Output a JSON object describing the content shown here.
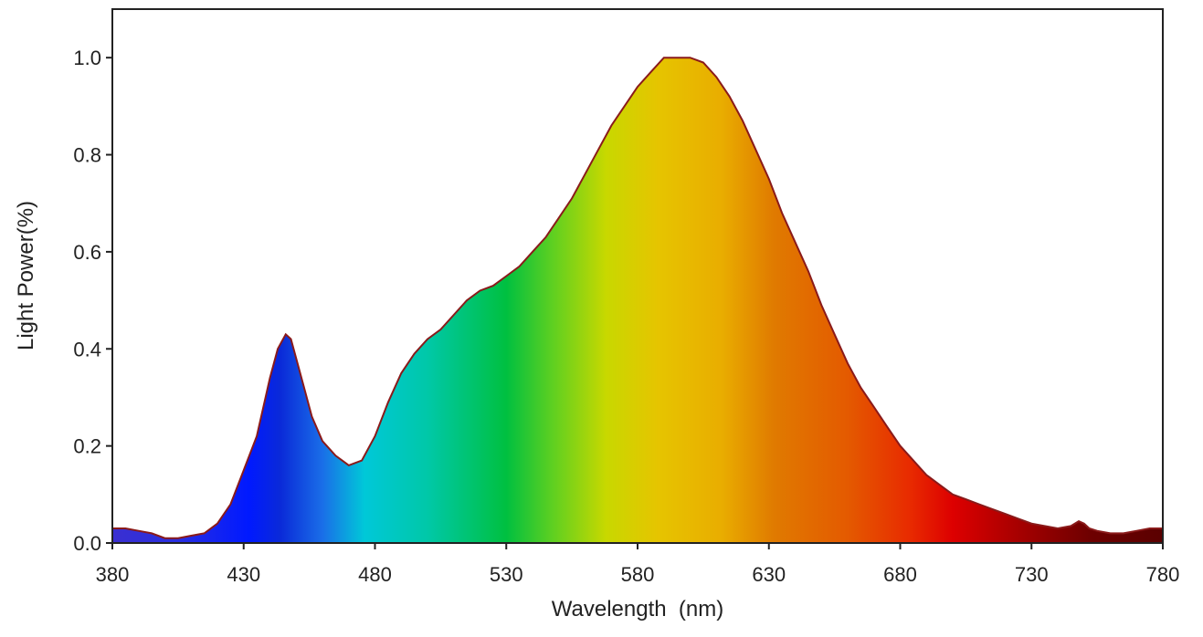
{
  "chart_data": {
    "type": "area",
    "title": "",
    "xlabel": "Wavelength  (nm)",
    "ylabel": "Light Power(%)",
    "xlim": [
      380,
      780
    ],
    "ylim": [
      0,
      1.1
    ],
    "x_ticks": [
      380,
      430,
      480,
      530,
      580,
      630,
      680,
      730,
      780
    ],
    "x_tick_labels": [
      "380",
      "430",
      "480",
      "530",
      "580",
      "630",
      "680",
      "730",
      "780"
    ],
    "y_ticks": [
      0.0,
      0.2,
      0.4,
      0.6,
      0.8,
      1.0
    ],
    "y_tick_labels": [
      "0.0",
      "0.2",
      "0.4",
      "0.6",
      "0.8",
      "1.0"
    ],
    "grid": false,
    "legend": "none",
    "fill": "visible-spectrum-gradient",
    "line_color": "#8a1a1a",
    "series": [
      {
        "x": [
          380,
          385,
          390,
          395,
          400,
          405,
          410,
          415,
          420,
          425,
          430,
          435,
          440,
          443,
          446,
          448,
          450,
          453,
          456,
          460,
          465,
          470,
          475,
          480,
          485,
          490,
          495,
          500,
          505,
          510,
          515,
          520,
          525,
          530,
          535,
          540,
          545,
          550,
          555,
          560,
          565,
          570,
          575,
          580,
          585,
          590,
          595,
          600,
          605,
          610,
          615,
          620,
          625,
          630,
          635,
          640,
          645,
          650,
          655,
          660,
          665,
          670,
          675,
          680,
          685,
          690,
          695,
          700,
          705,
          710,
          715,
          720,
          725,
          730,
          735,
          740,
          745,
          748,
          750,
          752,
          755,
          760,
          765,
          770,
          775,
          780
        ],
        "y": [
          0.03,
          0.03,
          0.025,
          0.02,
          0.01,
          0.01,
          0.015,
          0.02,
          0.04,
          0.08,
          0.15,
          0.22,
          0.34,
          0.4,
          0.43,
          0.42,
          0.38,
          0.32,
          0.26,
          0.21,
          0.18,
          0.16,
          0.17,
          0.22,
          0.29,
          0.35,
          0.39,
          0.42,
          0.44,
          0.47,
          0.5,
          0.52,
          0.53,
          0.55,
          0.57,
          0.6,
          0.63,
          0.67,
          0.71,
          0.76,
          0.81,
          0.86,
          0.9,
          0.94,
          0.97,
          1.0,
          1.0,
          1.0,
          0.99,
          0.96,
          0.92,
          0.87,
          0.81,
          0.75,
          0.68,
          0.62,
          0.56,
          0.49,
          0.43,
          0.37,
          0.32,
          0.28,
          0.24,
          0.2,
          0.17,
          0.14,
          0.12,
          0.1,
          0.09,
          0.08,
          0.07,
          0.06,
          0.05,
          0.04,
          0.035,
          0.03,
          0.035,
          0.045,
          0.04,
          0.03,
          0.025,
          0.02,
          0.02,
          0.025,
          0.03,
          0.03
        ]
      }
    ]
  }
}
